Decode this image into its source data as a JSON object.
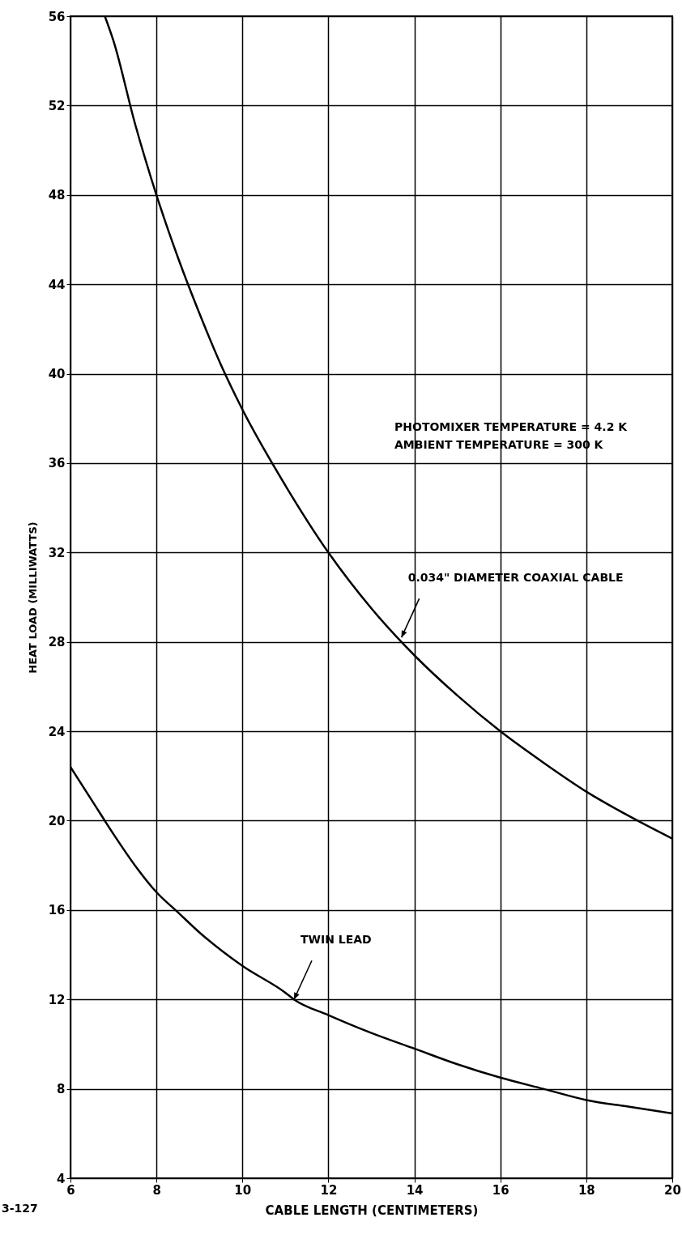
{
  "chart_data": {
    "type": "line",
    "xlabel": "CABLE LENGTH (CENTIMETERS)",
    "ylabel": "HEAT LOAD (MILLIWATTS)",
    "xlim": [
      6,
      20
    ],
    "ylim": [
      4,
      56
    ],
    "xticks": [
      6,
      8,
      10,
      12,
      14,
      16,
      18,
      20
    ],
    "yticks": [
      4,
      8,
      12,
      16,
      20,
      24,
      28,
      32,
      36,
      40,
      44,
      48,
      52,
      56
    ],
    "grid": true,
    "marker": "none",
    "line_style": "solid",
    "series": [
      {
        "color": "#000000",
        "x": [
          6.8,
          7,
          7.5,
          8,
          8.5,
          9,
          9.5,
          10,
          11,
          12,
          13,
          14,
          15,
          16,
          17,
          18,
          19,
          20
        ],
        "values": [
          56,
          54.9,
          51.2,
          48,
          45.2,
          42.7,
          40.4,
          38.4,
          35,
          32,
          29.5,
          27.4,
          25.6,
          24,
          22.6,
          21.3,
          20.2,
          19.2
        ]
      },
      {
        "color": "#000000",
        "x": [
          6,
          6.5,
          7,
          7.5,
          8,
          8.5,
          9,
          10,
          11,
          11.2,
          12,
          13,
          14,
          15,
          16,
          17,
          18,
          19,
          20
        ],
        "values": [
          22.4,
          20.9,
          19.4,
          18,
          16.8,
          15.9,
          15,
          13.5,
          12.3,
          12,
          11.3,
          10.5,
          9.8,
          9.1,
          8.5,
          8,
          7.5,
          7.2,
          6.9
        ]
      }
    ],
    "annotations": [
      "PHOTOMIXER TEMPERATURE = 4.2 K",
      "AMBIENT TEMPERATURE = 300 K",
      {
        "text": "0.034\" DIAMETER COAXIAL CABLE",
        "x": 13.7,
        "y": 28.2
      },
      {
        "text": "TWIN LEAD",
        "x": 11.2,
        "y": 12
      },
      "3-127"
    ]
  }
}
